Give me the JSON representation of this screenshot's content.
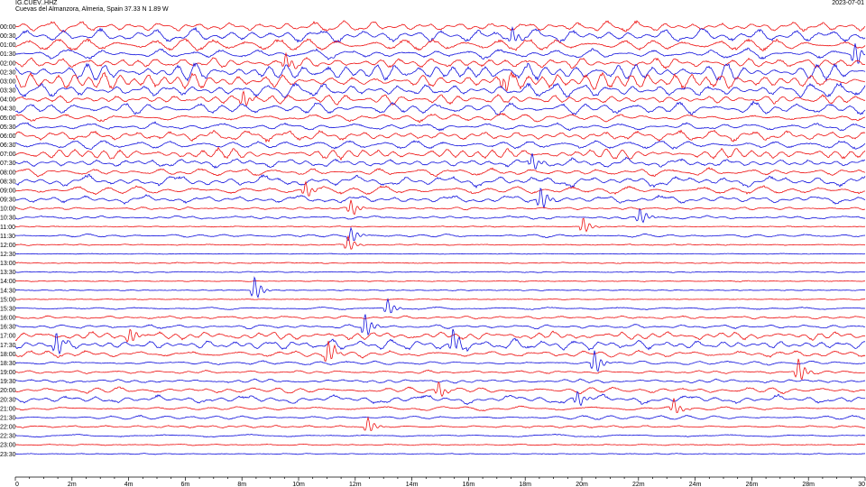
{
  "header": {
    "station": "IG.CUEV..HHZ",
    "location": "Cuevas del Almanzora, Almeria, Spain  37.33 N 1.89 W",
    "date": "2023-07-01"
  },
  "colors": {
    "red": "#ee1111",
    "blue": "#1111dd",
    "axis": "#000000"
  },
  "chart_data": {
    "type": "line",
    "title": "",
    "xlabel": "",
    "ylabel": "",
    "xlim": [
      0,
      30
    ],
    "x_ticks": [
      {
        "value": 0,
        "label": "0"
      },
      {
        "value": 2,
        "label": "2m"
      },
      {
        "value": 4,
        "label": "4m"
      },
      {
        "value": 6,
        "label": "6m"
      },
      {
        "value": 8,
        "label": "8m"
      },
      {
        "value": 10,
        "label": "10m"
      },
      {
        "value": 12,
        "label": "12m"
      },
      {
        "value": 14,
        "label": "14m"
      },
      {
        "value": 16,
        "label": "16m"
      },
      {
        "value": 18,
        "label": "18m"
      },
      {
        "value": 20,
        "label": "20m"
      },
      {
        "value": 22,
        "label": "22m"
      },
      {
        "value": 24,
        "label": "24m"
      },
      {
        "value": 26,
        "label": "26m"
      },
      {
        "value": 28,
        "label": "28m"
      },
      {
        "value": 30,
        "label": "30"
      }
    ],
    "trace_colors": [
      "red",
      "blue"
    ],
    "rows": [
      {
        "label": "00:00",
        "activity": 3
      },
      {
        "label": "00:30",
        "activity": 4
      },
      {
        "label": "01:00",
        "activity": 3
      },
      {
        "label": "01:30",
        "activity": 4
      },
      {
        "label": "02:00",
        "activity": 4
      },
      {
        "label": "02:30",
        "activity": 4
      },
      {
        "label": "03:00",
        "activity": 4
      },
      {
        "label": "03:30",
        "activity": 4
      },
      {
        "label": "04:00",
        "activity": 3
      },
      {
        "label": "04:30",
        "activity": 4
      },
      {
        "label": "05:00",
        "activity": 2
      },
      {
        "label": "05:30",
        "activity": 2
      },
      {
        "label": "06:00",
        "activity": 3
      },
      {
        "label": "06:30",
        "activity": 3
      },
      {
        "label": "07:00",
        "activity": 3
      },
      {
        "label": "07:30",
        "activity": 3
      },
      {
        "label": "08:00",
        "activity": 2
      },
      {
        "label": "08:30",
        "activity": 3
      },
      {
        "label": "09:00",
        "activity": 3
      },
      {
        "label": "09:30",
        "activity": 2
      },
      {
        "label": "10:00",
        "activity": 1
      },
      {
        "label": "10:30",
        "activity": 1
      },
      {
        "label": "11:00",
        "activity": 0
      },
      {
        "label": "11:30",
        "activity": 1
      },
      {
        "label": "12:00",
        "activity": 0
      },
      {
        "label": "12:30",
        "activity": 0
      },
      {
        "label": "13:00",
        "activity": 0
      },
      {
        "label": "13:30",
        "activity": 0
      },
      {
        "label": "14:00",
        "activity": 0
      },
      {
        "label": "14:30",
        "activity": 0
      },
      {
        "label": "15:00",
        "activity": 0
      },
      {
        "label": "15:30",
        "activity": 1
      },
      {
        "label": "16:00",
        "activity": 1
      },
      {
        "label": "16:30",
        "activity": 1
      },
      {
        "label": "17:00",
        "activity": 2
      },
      {
        "label": "17:30",
        "activity": 3
      },
      {
        "label": "18:00",
        "activity": 2
      },
      {
        "label": "18:30",
        "activity": 1
      },
      {
        "label": "19:00",
        "activity": 1
      },
      {
        "label": "19:30",
        "activity": 1
      },
      {
        "label": "20:00",
        "activity": 2
      },
      {
        "label": "20:30",
        "activity": 2
      },
      {
        "label": "21:00",
        "activity": 1
      },
      {
        "label": "21:30",
        "activity": 1
      },
      {
        "label": "22:00",
        "activity": 1
      },
      {
        "label": "22:30",
        "activity": 1
      },
      {
        "label": "23:00",
        "activity": 0
      },
      {
        "label": "23:30",
        "activity": 0
      }
    ],
    "spikes": [
      {
        "row": 1,
        "minute": 17.5,
        "strength": 2
      },
      {
        "row": 3,
        "minute": 29.6,
        "strength": 3
      },
      {
        "row": 4,
        "minute": 9.5,
        "strength": 2
      },
      {
        "row": 6,
        "minute": 17.2,
        "strength": 2
      },
      {
        "row": 8,
        "minute": 8.0,
        "strength": 2
      },
      {
        "row": 15,
        "minute": 18.2,
        "strength": 2
      },
      {
        "row": 18,
        "minute": 10.2,
        "strength": 2
      },
      {
        "row": 19,
        "minute": 18.5,
        "strength": 3
      },
      {
        "row": 20,
        "minute": 11.8,
        "strength": 2
      },
      {
        "row": 21,
        "minute": 22.0,
        "strength": 2
      },
      {
        "row": 22,
        "minute": 20.0,
        "strength": 2
      },
      {
        "row": 23,
        "minute": 11.8,
        "strength": 2
      },
      {
        "row": 24,
        "minute": 11.7,
        "strength": 2
      },
      {
        "row": 29,
        "minute": 8.4,
        "strength": 3
      },
      {
        "row": 31,
        "minute": 13.1,
        "strength": 2
      },
      {
        "row": 33,
        "minute": 12.3,
        "strength": 3
      },
      {
        "row": 34,
        "minute": 4.0,
        "strength": 2
      },
      {
        "row": 35,
        "minute": 1.4,
        "strength": 3
      },
      {
        "row": 35,
        "minute": 15.4,
        "strength": 3
      },
      {
        "row": 36,
        "minute": 11.0,
        "strength": 3
      },
      {
        "row": 37,
        "minute": 20.4,
        "strength": 3
      },
      {
        "row": 38,
        "minute": 27.6,
        "strength": 3
      },
      {
        "row": 40,
        "minute": 14.9,
        "strength": 2
      },
      {
        "row": 41,
        "minute": 19.8,
        "strength": 2
      },
      {
        "row": 42,
        "minute": 23.2,
        "strength": 2
      },
      {
        "row": 44,
        "minute": 12.4,
        "strength": 2
      }
    ]
  }
}
